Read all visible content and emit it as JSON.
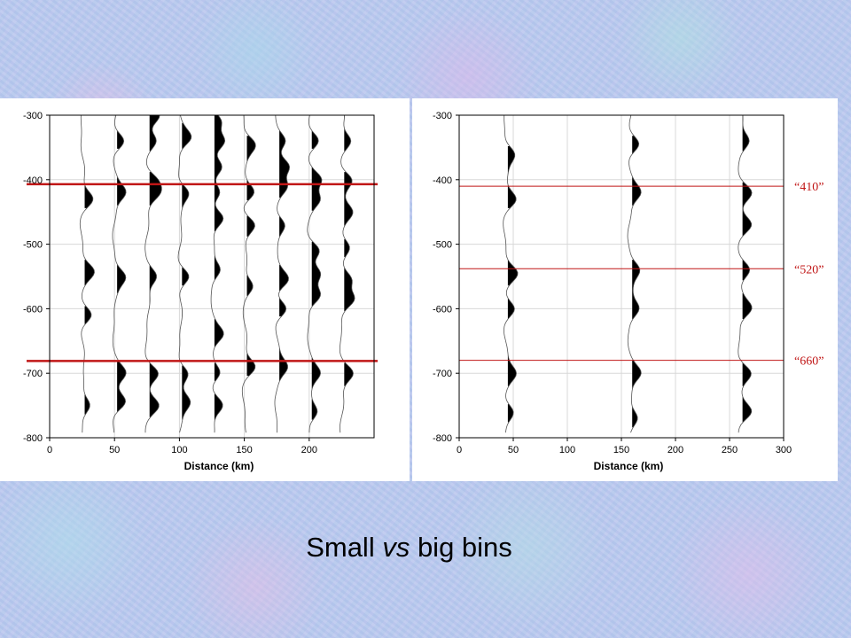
{
  "caption": {
    "part1": "Small ",
    "part2": "vs",
    "part3": " big bins"
  },
  "chart_data": [
    {
      "type": "line",
      "panel": "left",
      "xlabel": "Distance (km)",
      "ylabel": "",
      "xlim": [
        0,
        250
      ],
      "ylim": [
        -800,
        -300
      ],
      "xticks": [
        0,
        50,
        100,
        150,
        200
      ],
      "yticks": [
        -300,
        -400,
        -500,
        -600,
        -700,
        -800
      ],
      "xticklabels": [
        "0",
        "50",
        "100",
        "150",
        "200"
      ],
      "yticklabels": [
        "-300",
        "-400",
        "-500",
        "-600",
        "-700",
        "-800"
      ],
      "grid": true,
      "reference_lines": [
        -407,
        -681
      ],
      "series": [
        {
          "x": 27,
          "depths": [
            -430,
            -542,
            -610,
            -750
          ]
        },
        {
          "x": 52,
          "depths": [
            -340,
            -420,
            -550,
            -700,
            -745
          ]
        },
        {
          "x": 77,
          "depths": [
            -300,
            -340,
            -400,
            -420,
            -550,
            -700,
            -750
          ]
        },
        {
          "x": 102,
          "depths": [
            -335,
            -420,
            -550,
            -700,
            -745
          ]
        },
        {
          "x": 127,
          "depths": [
            -310,
            -340,
            -380,
            -420,
            -460,
            -540,
            -640,
            -700,
            -750
          ]
        },
        {
          "x": 152,
          "depths": [
            -345,
            -420,
            -470,
            -565,
            -690
          ]
        },
        {
          "x": 177,
          "depths": [
            -340,
            -380,
            -410,
            -470,
            -555,
            -600,
            -690
          ]
        },
        {
          "x": 202,
          "depths": [
            -340,
            -400,
            -430,
            -510,
            -545,
            -580,
            -700,
            -760
          ]
        },
        {
          "x": 227,
          "depths": [
            -340,
            -400,
            -450,
            -505,
            -555,
            -585,
            -700
          ]
        }
      ]
    },
    {
      "type": "line",
      "panel": "right",
      "xlabel": "Distance (km)",
      "ylabel": "",
      "xlim": [
        0,
        300
      ],
      "ylim": [
        -800,
        -300
      ],
      "xticks": [
        0,
        50,
        100,
        150,
        200,
        250,
        300
      ],
      "yticks": [
        -300,
        -400,
        -500,
        -600,
        -700,
        -800
      ],
      "xticklabels": [
        "0",
        "50",
        "100",
        "150",
        "200",
        "250",
        "300"
      ],
      "yticklabels": [
        "-300",
        "-400",
        "-500",
        "-600",
        "-700",
        "-800"
      ],
      "grid": true,
      "reference_lines": [
        {
          "depth": -410,
          "label": "“410”"
        },
        {
          "depth": -538,
          "label": "“520”"
        },
        {
          "depth": -680,
          "label": "“660”"
        }
      ],
      "series": [
        {
          "x": 45,
          "depths": [
            -360,
            -430,
            -545,
            -600,
            -700,
            -760
          ]
        },
        {
          "x": 160,
          "depths": [
            -345,
            -420,
            -540,
            -600,
            -700,
            -770
          ]
        },
        {
          "x": 262,
          "depths": [
            -340,
            -420,
            -470,
            -540,
            -600,
            -700,
            -760
          ]
        }
      ]
    }
  ],
  "colors": {
    "trace": "#000000",
    "reference_line": "#c01616",
    "annotation": "#c01616",
    "grid": "#d8d8d8"
  }
}
